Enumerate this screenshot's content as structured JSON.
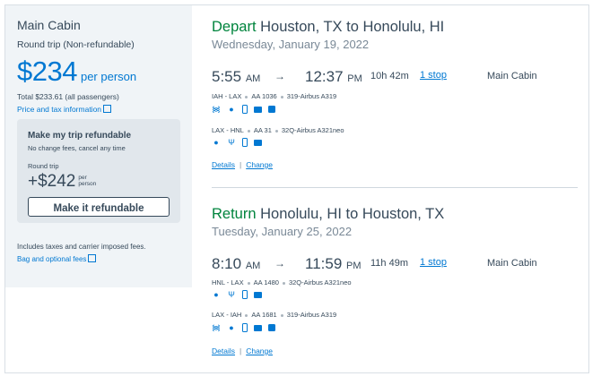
{
  "summary": {
    "cabin": "Main Cabin",
    "trip_type": "Round trip (Non-refundable)",
    "price": "$234",
    "per_person": "per person",
    "total": "Total $233.61 (all passengers)",
    "price_tax_link": "Price and tax information",
    "refund": {
      "title": "Make my trip refundable",
      "subtitle": "No change fees, cancel any time",
      "round_trip": "Round trip",
      "price": "+$242",
      "per_line1": "per",
      "per_line2": "person",
      "button": "Make it refundable"
    },
    "fees_note": "Includes taxes and carrier imposed fees.",
    "bag_link": "Bag and optional fees"
  },
  "segments": [
    {
      "direction": "Depart",
      "route": "Houston, TX to Honolulu, HI",
      "date": "Wednesday, January 19, 2022",
      "depart_time": "5:55",
      "depart_ampm": "AM",
      "arrive_time": "12:37",
      "arrive_ampm": "PM",
      "duration": "10h 42m",
      "stops": "1 stop",
      "cabin": "Main Cabin",
      "legs": [
        {
          "route": "IAH - LAX",
          "flight": "AA 1036",
          "aircraft": "319-Airbus A319",
          "amenities": [
            "wifi-icon",
            "power-icon",
            "phone-icon",
            "tv-icon",
            "app-icon"
          ]
        },
        {
          "route": "LAX - HNL",
          "flight": "AA 31",
          "aircraft": "32Q-Airbus A321neo",
          "amenities": [
            "power-icon",
            "usb-icon",
            "phone-icon",
            "tv-icon"
          ]
        }
      ]
    },
    {
      "direction": "Return",
      "route": "Honolulu, HI to Houston, TX",
      "date": "Tuesday, January 25, 2022",
      "depart_time": "8:10",
      "depart_ampm": "AM",
      "arrive_time": "11:59",
      "arrive_ampm": "PM",
      "duration": "11h 49m",
      "stops": "1 stop",
      "cabin": "Main Cabin",
      "legs": [
        {
          "route": "HNL - LAX",
          "flight": "AA 1480",
          "aircraft": "32Q-Airbus A321neo",
          "amenities": [
            "power-icon",
            "usb-icon",
            "phone-icon",
            "tv-icon"
          ]
        },
        {
          "route": "LAX - IAH",
          "flight": "AA 1681",
          "aircraft": "319-Airbus A319",
          "amenities": [
            "wifi-icon",
            "power-icon",
            "phone-icon",
            "tv-icon",
            "app-icon"
          ]
        }
      ]
    }
  ],
  "actions": {
    "details": "Details",
    "change": "Change",
    "separator": "|"
  },
  "arrow": "→",
  "colors": {
    "accent": "#0078d2",
    "green": "#00843d",
    "text": "#36495a",
    "panel": "#f0f4f7",
    "refund_panel": "#e1e7ec"
  }
}
